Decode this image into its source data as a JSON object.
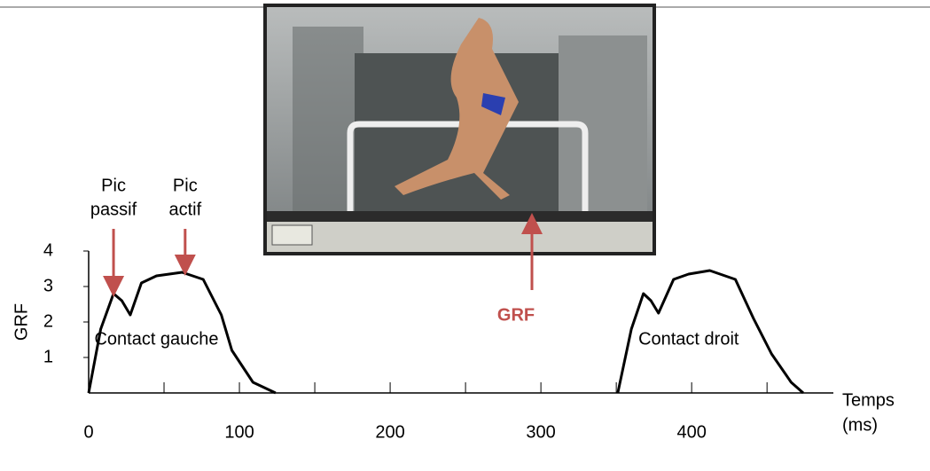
{
  "chart_data": {
    "type": "line",
    "ylabel": "GRF",
    "xlabel_line1": "Temps",
    "xlabel_line2": "(ms)",
    "xlim": [
      0,
      494
    ],
    "ylim": [
      0,
      4
    ],
    "xticks": [
      0,
      100,
      200,
      300,
      400
    ],
    "minor_xticks": [
      50,
      150,
      250,
      350,
      450
    ],
    "yticks": [
      1,
      2,
      3,
      4
    ],
    "series": [
      {
        "name": "Contact gauche",
        "color": "#000000",
        "x": [
          0,
          8,
          16.5,
          22,
          27.6,
          35,
          45,
          62,
          76,
          88,
          95,
          109,
          124
        ],
        "values": [
          0,
          1.8,
          2.8,
          2.6,
          2.2,
          3.1,
          3.3,
          3.4,
          3.2,
          2.2,
          1.2,
          0.3,
          0
        ]
      },
      {
        "name": "Contact droit",
        "color": "#000000",
        "x": [
          351,
          360,
          368,
          373,
          378,
          388,
          398,
          412,
          429,
          441,
          453,
          466,
          474
        ],
        "values": [
          0,
          1.8,
          2.8,
          2.6,
          2.25,
          3.2,
          3.35,
          3.45,
          3.2,
          2.1,
          1.1,
          0.3,
          0
        ]
      }
    ],
    "annotations": [
      {
        "line1": "Pic",
        "line2": "passif",
        "x": 16.5,
        "y": 2.8
      },
      {
        "line1": "Pic",
        "line2": "actif",
        "x": 64,
        "y": 3.4
      }
    ],
    "photo_label": "GRF"
  }
}
